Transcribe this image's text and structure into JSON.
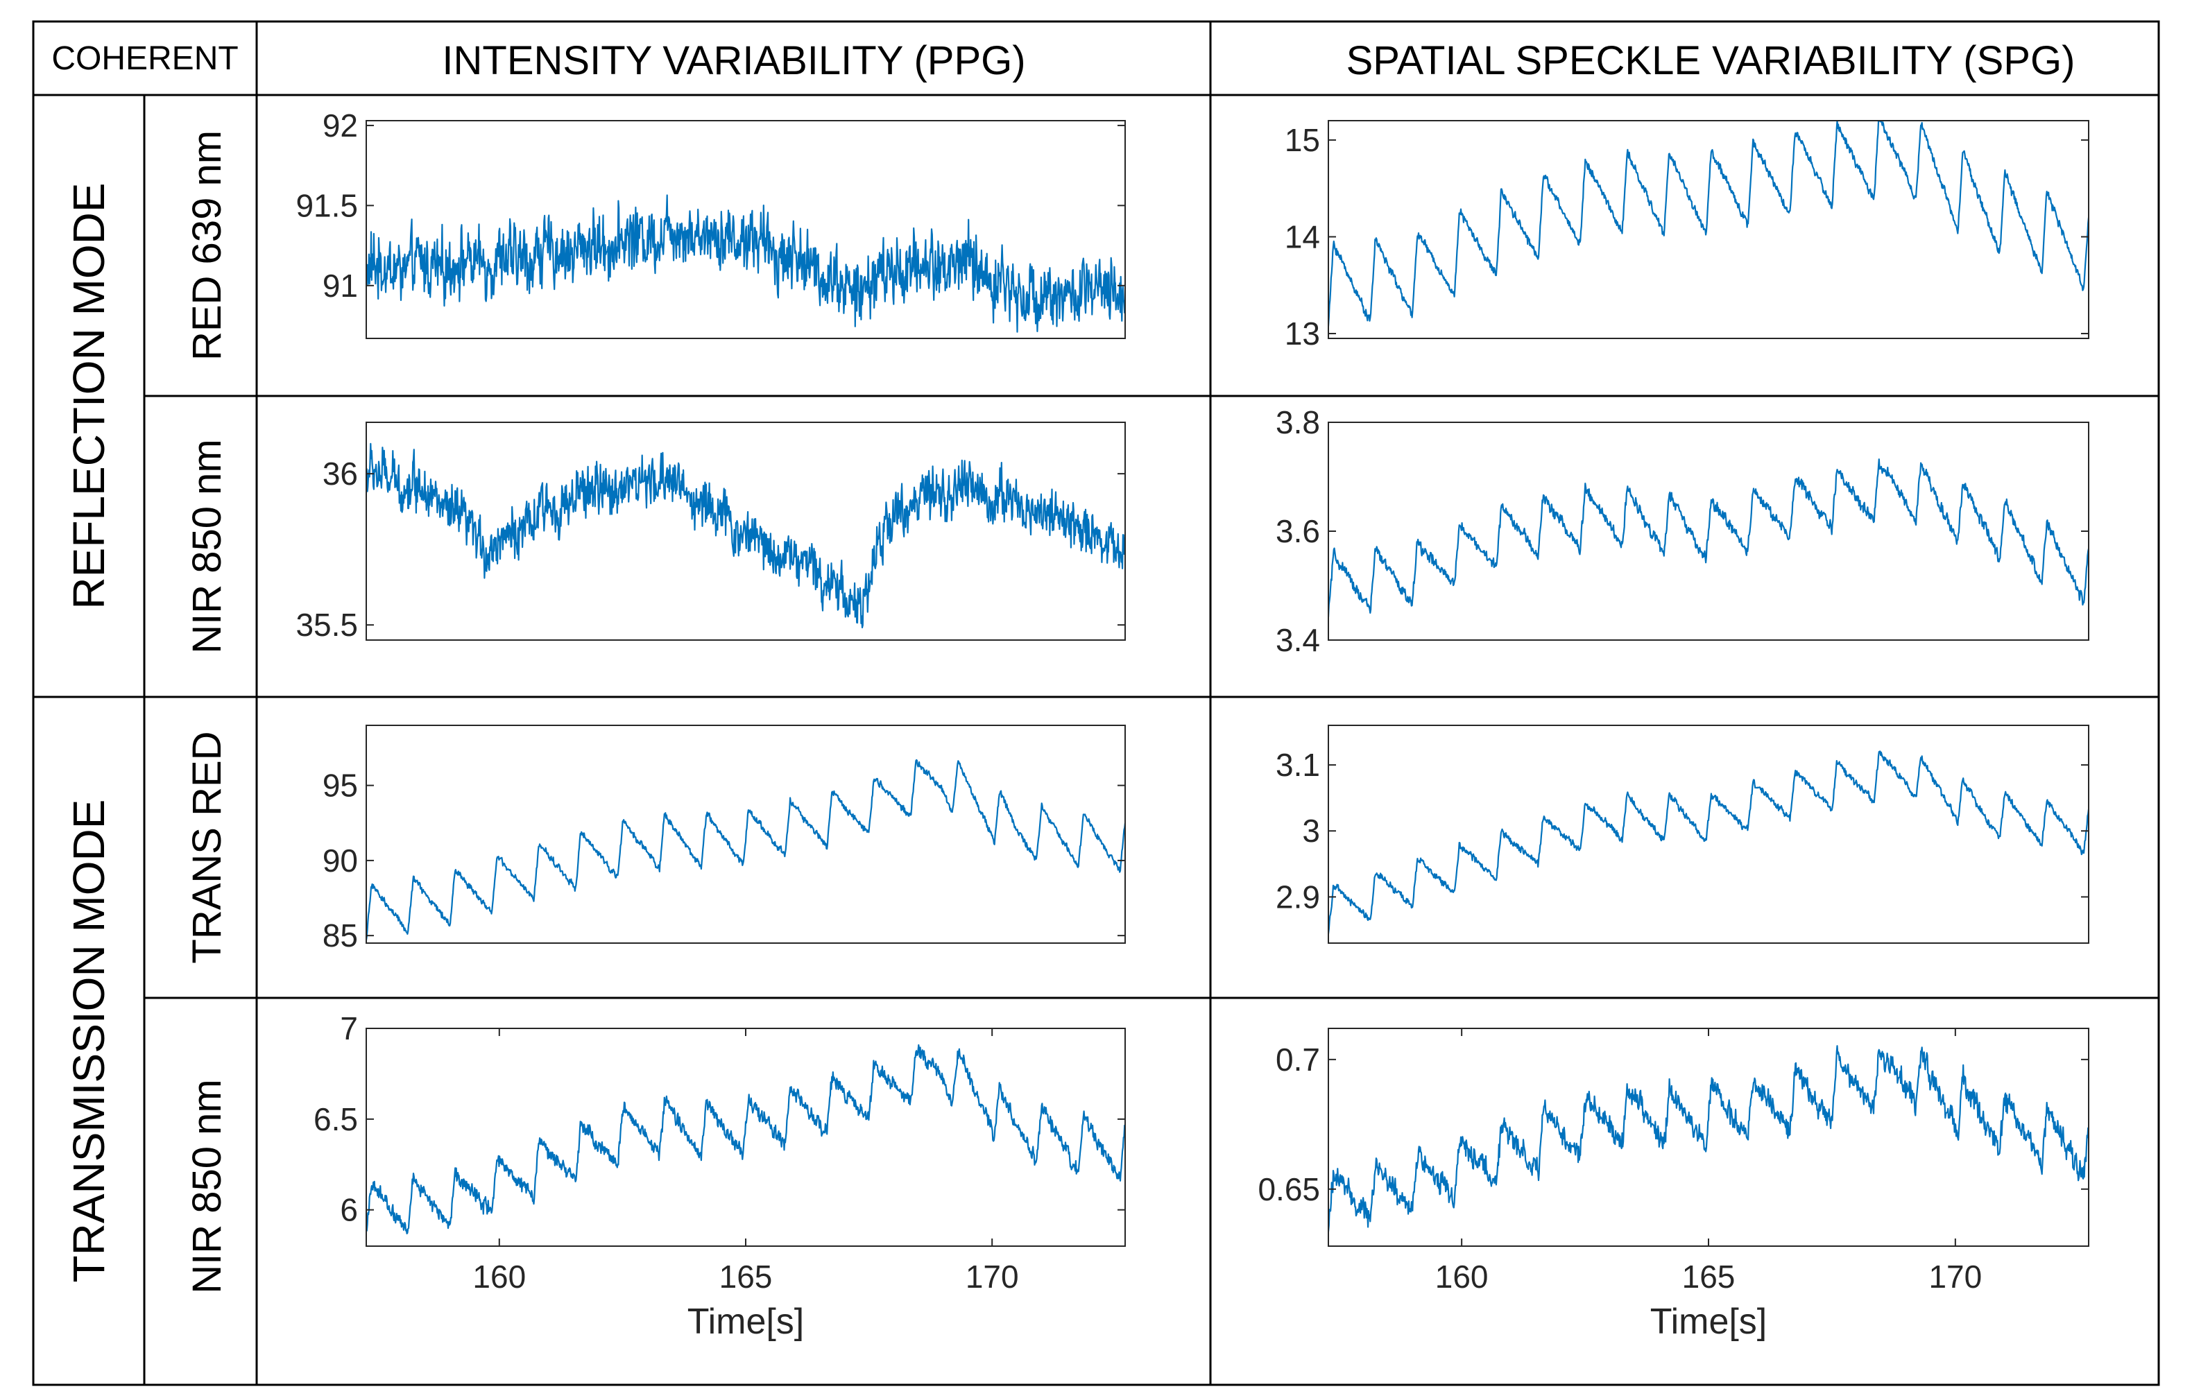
{
  "table": {
    "corner_label": "COHERENT",
    "column_headers": [
      "INTENSITY VARIABILITY (PPG)",
      "SPATIAL SPECKLE VARIABILITY (SPG)"
    ],
    "mode_labels": [
      "REFLECTION MODE",
      "TRANSMISSION MODE"
    ],
    "row_labels": [
      "RED 639 nm",
      "NIR 850 nm",
      "TRANS RED",
      "NIR 850 nm"
    ]
  },
  "colors": {
    "signal": "#0072BD",
    "axis": "#262626",
    "grid": "#000000"
  },
  "chart_data": [
    {
      "type": "line",
      "id": "ppg-reflection-red",
      "row_label": "RED 639 nm",
      "column": "INTENSITY VARIABILITY (PPG)",
      "xlim": [
        157.3,
        172.7
      ],
      "ylim": [
        90.67,
        92.03
      ],
      "yticks": [
        91,
        91.5,
        92
      ],
      "ytick_labels": [
        "91",
        "91.5",
        "92"
      ],
      "xticks": [],
      "xtick_labels": [],
      "xlabel": "",
      "signal": {
        "base": 91.15,
        "trend": [
          [
            157.3,
            91.1
          ],
          [
            160,
            91.15
          ],
          [
            162,
            91.25
          ],
          [
            163.5,
            91.35
          ],
          [
            165,
            91.3
          ],
          [
            166.5,
            91.1
          ],
          [
            167.2,
            90.95
          ],
          [
            168,
            91.1
          ],
          [
            169.5,
            91.15
          ],
          [
            170.5,
            90.95
          ],
          [
            172.7,
            90.95
          ]
        ],
        "pulse_amp": 0.06,
        "noise": 0.22,
        "period": 0.85
      }
    },
    {
      "type": "line",
      "id": "spg-reflection-red",
      "row_label": "RED 639 nm",
      "column": "SPATIAL SPECKLE VARIABILITY (SPG)",
      "xlim": [
        157.3,
        172.7
      ],
      "ylim": [
        12.95,
        15.2
      ],
      "yticks": [
        13,
        14,
        15
      ],
      "ytick_labels": [
        "13",
        "14",
        "15"
      ],
      "xticks": [],
      "xtick_labels": [],
      "xlabel": "",
      "signal": {
        "base": 14.0,
        "trend": [
          [
            157.3,
            13.5
          ],
          [
            159,
            13.6
          ],
          [
            161,
            14.1
          ],
          [
            163,
            14.45
          ],
          [
            165,
            14.45
          ],
          [
            167,
            14.7
          ],
          [
            169,
            14.85
          ],
          [
            170.5,
            14.35
          ],
          [
            172.7,
            13.85
          ]
        ],
        "pulse_amp": 0.85,
        "noise": 0.05,
        "period": 0.85
      }
    },
    {
      "type": "line",
      "id": "ppg-reflection-nir",
      "row_label": "NIR 850 nm",
      "column": "INTENSITY VARIABILITY (PPG)",
      "xlim": [
        157.3,
        172.7
      ],
      "ylim": [
        35.45,
        36.17
      ],
      "yticks": [
        35.5,
        36
      ],
      "ytick_labels": [
        "35.5",
        "36"
      ],
      "xticks": [],
      "xtick_labels": [],
      "xlabel": "",
      "signal": {
        "base": 35.9,
        "trend": [
          [
            157.3,
            36.0
          ],
          [
            158.5,
            35.95
          ],
          [
            159.8,
            35.75
          ],
          [
            161,
            35.88
          ],
          [
            162,
            35.95
          ],
          [
            163.5,
            35.98
          ],
          [
            165,
            35.8
          ],
          [
            166.5,
            35.68
          ],
          [
            167.3,
            35.55
          ],
          [
            168,
            35.88
          ],
          [
            169.5,
            35.95
          ],
          [
            171,
            35.88
          ],
          [
            172.7,
            35.75
          ]
        ],
        "pulse_amp": 0.04,
        "noise": 0.09,
        "period": 0.85
      }
    },
    {
      "type": "line",
      "id": "spg-reflection-nir",
      "row_label": "NIR 850 nm",
      "column": "SPATIAL SPECKLE VARIABILITY (SPG)",
      "xlim": [
        157.3,
        172.7
      ],
      "ylim": [
        3.4,
        3.8
      ],
      "yticks": [
        3.4,
        3.6,
        3.8
      ],
      "ytick_labels": [
        "3.4",
        "3.6",
        "3.8"
      ],
      "xticks": [],
      "xtick_labels": [],
      "xlabel": "",
      "signal": {
        "base": 3.6,
        "trend": [
          [
            157.3,
            3.5
          ],
          [
            159,
            3.52
          ],
          [
            161,
            3.6
          ],
          [
            163,
            3.63
          ],
          [
            165,
            3.6
          ],
          [
            167,
            3.65
          ],
          [
            169,
            3.68
          ],
          [
            170.5,
            3.62
          ],
          [
            172.7,
            3.52
          ]
        ],
        "pulse_amp": 0.11,
        "noise": 0.012,
        "period": 0.85
      }
    },
    {
      "type": "line",
      "id": "ppg-transmission-red",
      "row_label": "TRANS RED",
      "column": "INTENSITY VARIABILITY (PPG)",
      "xlim": [
        157.3,
        172.7
      ],
      "ylim": [
        84.5,
        99.0
      ],
      "yticks": [
        85,
        90,
        95
      ],
      "ytick_labels": [
        "85",
        "90",
        "95"
      ],
      "xticks": [],
      "xtick_labels": [],
      "xlabel": "",
      "signal": {
        "base": 90.0,
        "trend": [
          [
            157.3,
            86.5
          ],
          [
            159,
            87.5
          ],
          [
            161,
            89.5
          ],
          [
            163,
            91.2
          ],
          [
            165,
            91.5
          ],
          [
            167,
            93.0
          ],
          [
            169,
            95.5
          ],
          [
            170.5,
            92.0
          ],
          [
            172.7,
            91.0
          ]
        ],
        "pulse_amp": 3.6,
        "noise": 0.25,
        "period": 0.85
      }
    },
    {
      "type": "line",
      "id": "spg-transmission-red",
      "row_label": "TRANS RED",
      "column": "SPATIAL SPECKLE VARIABILITY (SPG)",
      "xlim": [
        157.3,
        172.7
      ],
      "ylim": [
        2.83,
        3.16
      ],
      "yticks": [
        2.9,
        3,
        3.1
      ],
      "ytick_labels": [
        "2.9",
        "3",
        "3.1"
      ],
      "xticks": [],
      "xtick_labels": [],
      "xlabel": "",
      "signal": {
        "base": 3.0,
        "trend": [
          [
            157.3,
            2.88
          ],
          [
            159,
            2.92
          ],
          [
            161,
            2.97
          ],
          [
            163,
            3.02
          ],
          [
            165,
            3.02
          ],
          [
            167,
            3.06
          ],
          [
            169,
            3.09
          ],
          [
            170.5,
            3.03
          ],
          [
            172.7,
            3.0
          ]
        ],
        "pulse_amp": 0.07,
        "noise": 0.006,
        "period": 0.85
      }
    },
    {
      "type": "line",
      "id": "ppg-transmission-nir",
      "row_label": "NIR 850 nm",
      "column": "INTENSITY VARIABILITY (PPG)",
      "xlim": [
        157.3,
        172.7
      ],
      "ylim": [
        5.8,
        7.0
      ],
      "yticks": [
        6,
        6.5,
        7
      ],
      "ytick_labels": [
        "6",
        "6.5",
        "7"
      ],
      "xticks": [
        160,
        165,
        170
      ],
      "xtick_labels": [
        "160",
        "165",
        "170"
      ],
      "xlabel": "Time[s]",
      "signal": {
        "base": 6.4,
        "trend": [
          [
            157.3,
            6.0
          ],
          [
            159,
            6.05
          ],
          [
            161,
            6.25
          ],
          [
            163,
            6.45
          ],
          [
            165,
            6.45
          ],
          [
            167,
            6.6
          ],
          [
            169,
            6.8
          ],
          [
            170.5,
            6.45
          ],
          [
            172.7,
            6.3
          ]
        ],
        "pulse_amp": 0.3,
        "noise": 0.045,
        "period": 0.85
      }
    },
    {
      "type": "line",
      "id": "spg-transmission-nir",
      "row_label": "NIR 850 nm",
      "column": "SPATIAL SPECKLE VARIABILITY (SPG)",
      "xlim": [
        157.3,
        172.7
      ],
      "ylim": [
        0.628,
        0.712
      ],
      "yticks": [
        0.65,
        0.7
      ],
      "ytick_labels": [
        "0.65",
        "0.7"
      ],
      "xticks": [
        160,
        165,
        170
      ],
      "xtick_labels": [
        "160",
        "165",
        "170"
      ],
      "xlabel": "Time[s]",
      "signal": {
        "base": 0.67,
        "trend": [
          [
            157.3,
            0.645
          ],
          [
            159,
            0.652
          ],
          [
            161,
            0.665
          ],
          [
            163,
            0.678
          ],
          [
            165,
            0.678
          ],
          [
            167,
            0.685
          ],
          [
            169,
            0.695
          ],
          [
            170.5,
            0.678
          ],
          [
            172.7,
            0.665
          ]
        ],
        "pulse_amp": 0.022,
        "noise": 0.005,
        "period": 0.85
      }
    }
  ]
}
